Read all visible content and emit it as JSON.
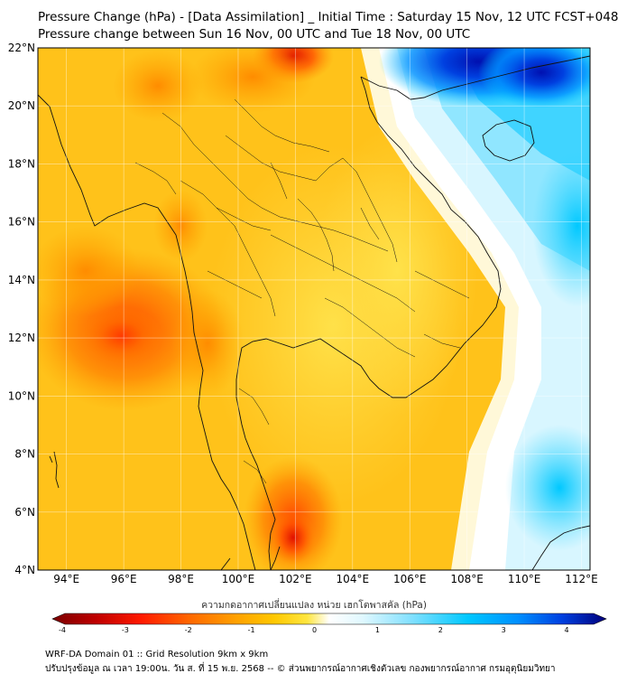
{
  "header": {
    "title_line1": "Pressure Change (hPa) - [Data Assimilation] _ Initial Time : Saturday 15 Nov, 12 UTC FCST+048",
    "title_line2": "Pressure change between Sun 16 Nov, 00 UTC and Tue 18 Nov, 00 UTC"
  },
  "map": {
    "lat_labels": [
      "22°N",
      "20°N",
      "18°N",
      "16°N",
      "14°N",
      "12°N",
      "10°N",
      "8°N",
      "6°N",
      "4°N"
    ],
    "lon_labels": [
      "94°E",
      "96°E",
      "98°E",
      "100°E",
      "102°E",
      "104°E",
      "106°E",
      "108°E",
      "110°E",
      "112°E"
    ],
    "lat_range": [
      4,
      22
    ],
    "lon_range": [
      93,
      112.3
    ],
    "grid": true
  },
  "colorbar": {
    "title": "ความกดอากาศเปลี่ยนแปลง หน่วย เฮกโตพาสคัล (hPa)",
    "tick_labels": [
      "-4",
      "-3",
      "-2",
      "-1",
      "0",
      "1",
      "2",
      "3",
      "4"
    ],
    "range": [
      -4,
      4
    ],
    "colors": [
      "#7a0000",
      "#c00000",
      "#ff1a00",
      "#ff6a00",
      "#ffa000",
      "#ffc800",
      "#ffe640",
      "#fffbe0",
      "#ffffff",
      "#e0f8ff",
      "#80e0ff",
      "#00c8ff",
      "#0090ff",
      "#0040e0",
      "#00007a"
    ]
  },
  "footer": {
    "line1": "WRF-DA Domain 01 :: Grid Resolution 9km x 9km",
    "line2": "ปรับปรุงข้อมูล ณ เวลา 19:00น. วัน ส. ที่ 15 พ.ย. 2568 -- © ส่วนพยากรณ์อากาศเชิงตัวเลข กองพยากรณ์อากาศ กรมอุตุนิยมวิทยา"
  }
}
